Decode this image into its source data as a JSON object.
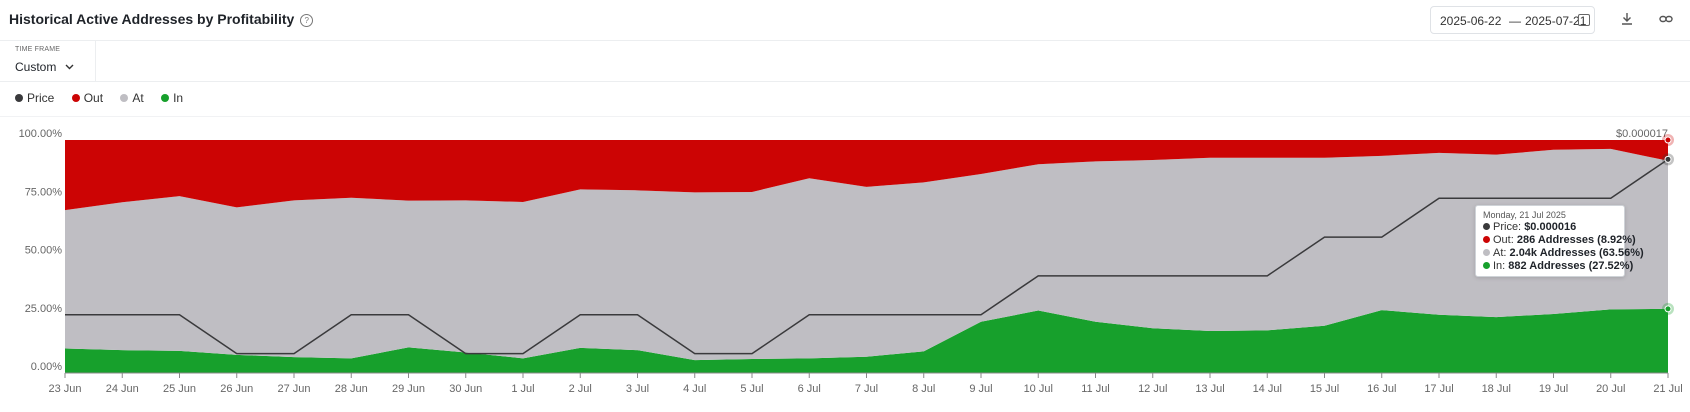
{
  "header": {
    "title": "Historical Active Addresses by Profitability",
    "date_start": "2025-06-22",
    "date_sep": "—",
    "date_end": "2025-07-21"
  },
  "timeframe": {
    "label": "TIME FRAME",
    "value": "Custom"
  },
  "legend": [
    {
      "name": "Price",
      "color": "#3a3a3c"
    },
    {
      "name": "Out",
      "color": "#cc0404"
    },
    {
      "name": "At",
      "color": "#bfbec3"
    },
    {
      "name": "In",
      "color": "#17a02c"
    }
  ],
  "tooltip": {
    "date": "Monday, 21 Jul 2025",
    "rows": [
      {
        "label": "Price:",
        "value": "$0.000016",
        "color": "#3a3a3c"
      },
      {
        "label": "Out:",
        "value": "286 Addresses (8.92%)",
        "color": "#cc0404"
      },
      {
        "label": "At:",
        "value": "2.04k Addresses (63.56%)",
        "color": "#bfbec3"
      },
      {
        "label": "In:",
        "value": "882 Addresses (27.52%)",
        "color": "#17a02c"
      }
    ]
  },
  "chart_data": {
    "type": "area",
    "stacked": true,
    "x": [
      "23 Jun",
      "24 Jun",
      "25 Jun",
      "26 Jun",
      "27 Jun",
      "28 Jun",
      "29 Jun",
      "30 Jun",
      "1 Jul",
      "2 Jul",
      "3 Jul",
      "4 Jul",
      "5 Jul",
      "6 Jul",
      "7 Jul",
      "8 Jul",
      "9 Jul",
      "10 Jul",
      "11 Jul",
      "12 Jul",
      "13 Jul",
      "14 Jul",
      "15 Jul",
      "16 Jul",
      "17 Jul",
      "18 Jul",
      "19 Jul",
      "20 Jul",
      "21 Jul"
    ],
    "y_ticks": [
      "0.00%",
      "25.00%",
      "50.00%",
      "75.00%",
      "100.00%"
    ],
    "ylim": [
      0,
      100
    ],
    "right_axis_label": "$0.000017",
    "series": [
      {
        "name": "In",
        "color": "#17a02c",
        "values": [
          10.5,
          9.8,
          9.5,
          7.8,
          6.8,
          6.3,
          11.0,
          8.8,
          6.3,
          10.8,
          9.8,
          5.5,
          6.0,
          6.3,
          7.0,
          9.3,
          22.0,
          26.8,
          22.0,
          19.2,
          18.0,
          18.3,
          20.3,
          27.0,
          25.0,
          24.0,
          25.3,
          27.3,
          27.52
        ]
      },
      {
        "name": "At",
        "color": "#bfbec3",
        "values": [
          59.4,
          63.5,
          66.4,
          63.3,
          67.3,
          68.9,
          63.0,
          65.3,
          67.1,
          68.0,
          68.6,
          72.0,
          71.7,
          77.3,
          72.9,
          72.5,
          63.4,
          62.8,
          68.8,
          72.2,
          74.4,
          74.1,
          72.1,
          66.2,
          69.5,
          69.7,
          70.5,
          68.9,
          63.56
        ]
      },
      {
        "name": "Out",
        "color": "#cc0404",
        "values": [
          30.1,
          26.7,
          24.1,
          28.9,
          25.9,
          24.8,
          26.0,
          25.9,
          26.6,
          21.2,
          21.6,
          22.5,
          22.3,
          16.4,
          20.1,
          18.2,
          14.6,
          10.4,
          9.2,
          8.6,
          7.6,
          7.6,
          7.6,
          6.8,
          5.5,
          6.3,
          4.2,
          3.8,
          8.92
        ]
      }
    ],
    "price_line": {
      "name": "Price",
      "color": "#3a3a3c",
      "values": [
        25,
        25,
        25,
        8.3,
        8.3,
        25,
        25,
        8.3,
        8.3,
        25,
        25,
        8.3,
        8.3,
        25,
        25,
        25,
        25,
        41.7,
        41.7,
        41.7,
        41.7,
        41.7,
        58.3,
        58.3,
        75,
        75,
        75,
        75,
        91.7
      ]
    }
  }
}
